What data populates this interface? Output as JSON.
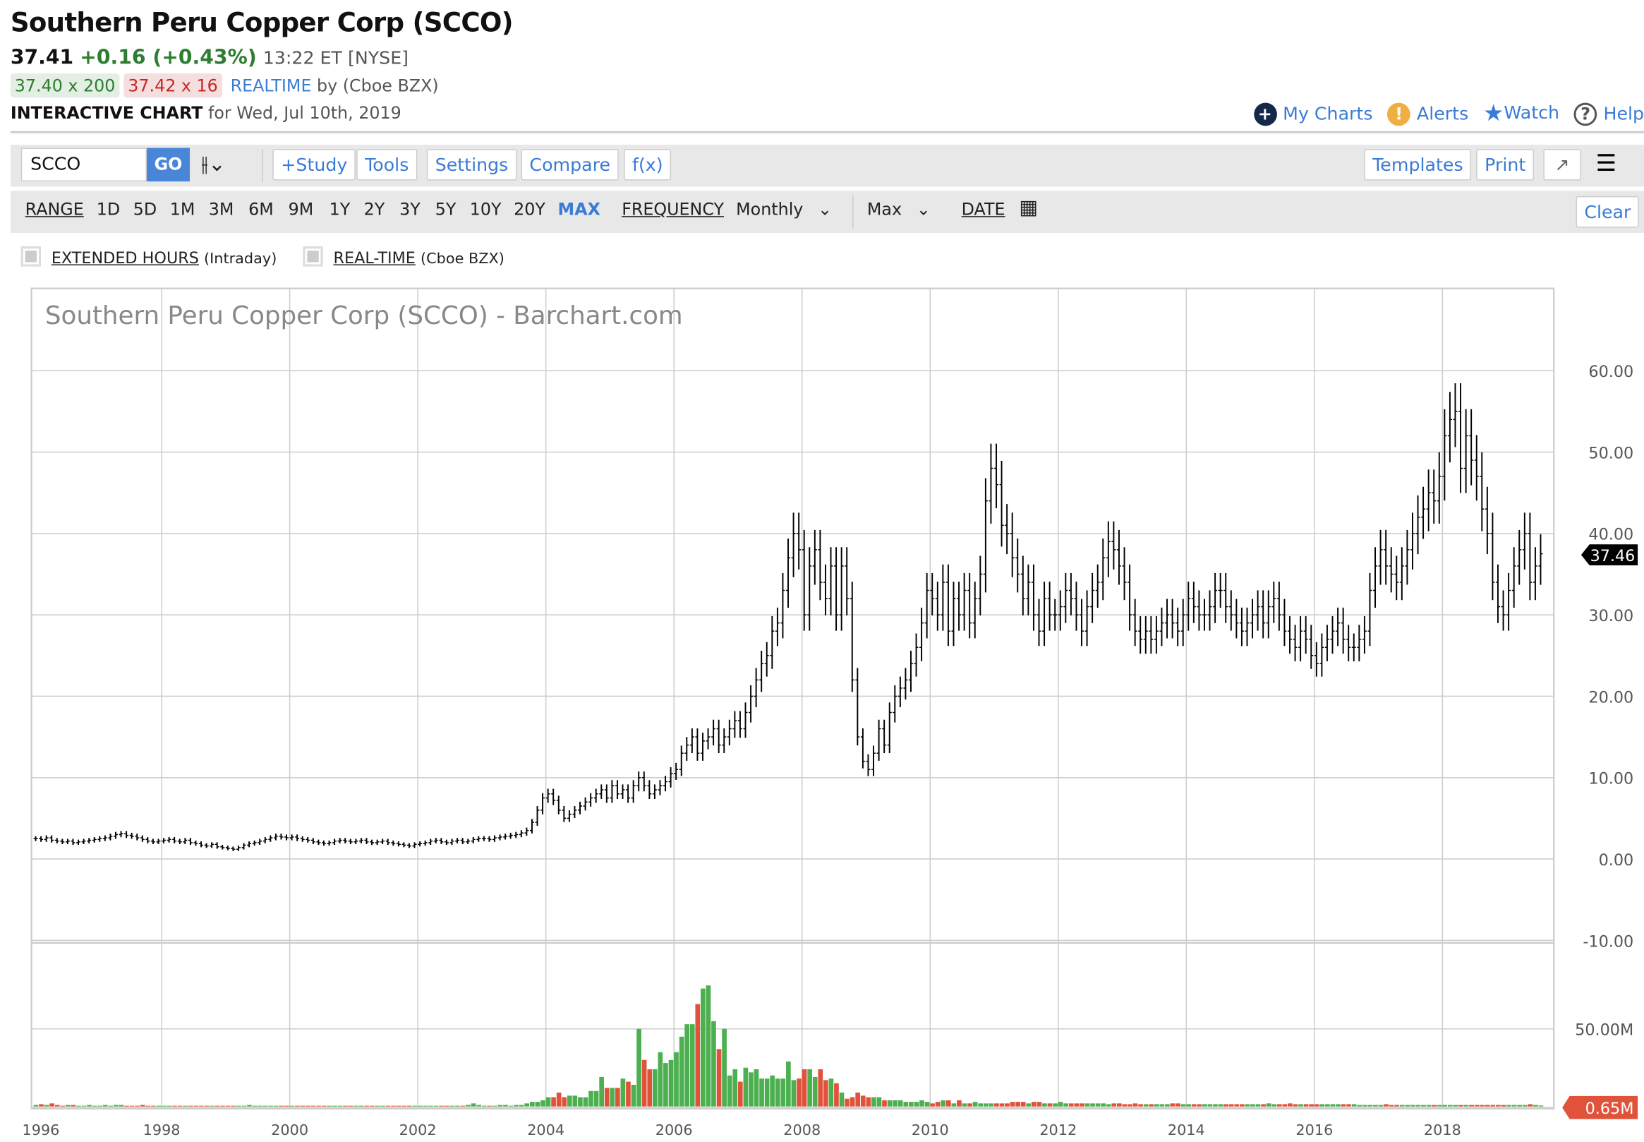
{
  "header": {
    "title": "Southern Peru Copper Corp (SCCO)",
    "last": "37.41",
    "change": "+0.16 (+0.43%)",
    "time": "13:22 ET [NYSE]",
    "bid": "37.40 x 200",
    "ask": "37.42 x 16",
    "realtime": "REALTIME",
    "by": "by (Cboe BZX)",
    "ic_label": "INTERACTIVE CHART",
    "ic_date": "for Wed, Jul 10th, 2019"
  },
  "links": {
    "my_charts": "My Charts",
    "alerts": "Alerts",
    "watch": "Watch",
    "help": "Help"
  },
  "toolbar": {
    "symbol": "SCCO",
    "go": "GO",
    "study": "+Study",
    "tools": "Tools",
    "settings": "Settings",
    "compare": "Compare",
    "fx": "f(x)",
    "templates": "Templates",
    "print": "Print"
  },
  "range": {
    "label": "RANGE",
    "items": [
      "1D",
      "5D",
      "1M",
      "3M",
      "6M",
      "9M",
      "1Y",
      "2Y",
      "3Y",
      "5Y",
      "10Y",
      "20Y",
      "MAX"
    ],
    "active": "MAX",
    "frequency_label": "FREQUENCY",
    "frequency": "Monthly",
    "period": "Max",
    "date_label": "DATE",
    "clear": "Clear"
  },
  "options": {
    "ext": "EXTENDED HOURS",
    "ext_note": "(Intraday)",
    "rt": "REAL-TIME",
    "rt_note": "(Cboe BZX)"
  },
  "colors": {
    "up": "#4caf50",
    "down": "#e0533a",
    "accent": "#3a7bd5",
    "price_badge": "#000000",
    "volume_badge": "#e0533a"
  },
  "chart_data": {
    "type": "ohlc-bar",
    "title": "Southern Peru Copper Corp (SCCO) - Barchart.com",
    "frequency": "monthly",
    "start": "1996-01",
    "x_ticks": [
      "1996",
      "1998",
      "2000",
      "2002",
      "2004",
      "2006",
      "2008",
      "2010",
      "2012",
      "2014",
      "2016",
      "2018"
    ],
    "y_ticks": [
      "60.00",
      "50.00",
      "40.00",
      "30.00",
      "20.00",
      "10.00",
      "0.00",
      "-10.00"
    ],
    "ylim": [
      -10,
      70
    ],
    "volume_ticks": [
      "50.00M"
    ],
    "last_price": "37.46",
    "last_volume": "0.65M",
    "close": [
      2.5,
      2.4,
      2.6,
      2.3,
      2.2,
      2.1,
      2.2,
      2.0,
      2.1,
      2.2,
      2.3,
      2.4,
      2.5,
      2.6,
      2.8,
      3.0,
      3.1,
      2.9,
      2.8,
      2.6,
      2.4,
      2.2,
      2.1,
      2.2,
      2.3,
      2.4,
      2.2,
      2.1,
      2.3,
      2.0,
      1.9,
      1.7,
      1.6,
      1.8,
      1.5,
      1.4,
      1.3,
      1.2,
      1.4,
      1.7,
      1.9,
      2.0,
      2.2,
      2.4,
      2.6,
      2.8,
      2.7,
      2.6,
      2.7,
      2.5,
      2.4,
      2.3,
      2.1,
      2.0,
      1.9,
      2.0,
      2.2,
      2.3,
      2.2,
      2.1,
      2.2,
      2.3,
      2.1,
      2.0,
      2.1,
      2.2,
      2.0,
      1.9,
      1.8,
      1.7,
      1.6,
      1.8,
      1.9,
      2.0,
      2.2,
      2.3,
      2.1,
      2.0,
      2.2,
      2.3,
      2.1,
      2.2,
      2.4,
      2.5,
      2.5,
      2.4,
      2.6,
      2.7,
      2.8,
      2.9,
      3.0,
      3.2,
      3.5,
      4.5,
      6.0,
      7.5,
      8.0,
      7.2,
      6.0,
      5.0,
      5.5,
      6.0,
      6.5,
      7.0,
      7.5,
      8.0,
      8.5,
      7.5,
      9.0,
      8.0,
      8.5,
      7.5,
      9.0,
      10.0,
      9.0,
      8.0,
      8.5,
      9.0,
      9.5,
      10.5,
      11.0,
      13.0,
      14.0,
      15.0,
      13.0,
      14.5,
      15.0,
      16.0,
      14.0,
      15.0,
      16.0,
      17.0,
      16.0,
      18.0,
      20.0,
      22.0,
      24.0,
      25.0,
      28.0,
      29.0,
      33.0,
      37.0,
      40.0,
      38.0,
      30.0,
      36.0,
      38.0,
      34.0,
      32.0,
      36.0,
      30.0,
      36.0,
      32.0,
      22.0,
      15.0,
      12.0,
      11.0,
      13.0,
      16.0,
      14.0,
      18.0,
      20.0,
      21.0,
      22.0,
      24.0,
      26.0,
      29.0,
      33.0,
      32.0,
      30.0,
      34.0,
      28.0,
      32.0,
      30.0,
      33.0,
      29.0,
      32.0,
      35.0,
      44.0,
      48.0,
      46.0,
      41.0,
      40.0,
      37.0,
      35.0,
      32.0,
      34.0,
      30.0,
      28.0,
      32.0,
      30.0,
      30.0,
      31.0,
      33.0,
      32.0,
      30.0,
      28.0,
      31.0,
      33.0,
      34.0,
      37.0,
      39.0,
      38.0,
      36.0,
      34.0,
      30.0,
      28.0,
      27.0,
      28.0,
      27.0,
      28.0,
      29.0,
      30.0,
      29.0,
      28.0,
      30.0,
      32.0,
      31.0,
      30.0,
      30.0,
      31.0,
      33.0,
      33.0,
      31.0,
      30.0,
      29.0,
      28.0,
      29.0,
      30.0,
      31.0,
      29.0,
      31.0,
      32.0,
      30.0,
      28.0,
      27.0,
      26.0,
      28.0,
      27.0,
      25.0,
      24.0,
      26.0,
      27.0,
      28.0,
      29.0,
      27.0,
      26.0,
      26.0,
      27.0,
      28.0,
      33.0,
      36.0,
      38.0,
      36.0,
      35.0,
      34.0,
      36.0,
      38.0,
      40.0,
      42.0,
      43.0,
      45.0,
      44.0,
      47.0,
      52.0,
      54.0,
      55.0,
      48.0,
      52.0,
      49.0,
      47.0,
      43.0,
      40.0,
      34.0,
      31.0,
      30.0,
      33.0,
      36.0,
      38.0,
      40.0,
      34.0,
      36.0,
      37.5
    ],
    "volume_millions": [
      1,
      1.5,
      1,
      2,
      1,
      0.5,
      1,
      1,
      0.5,
      0.5,
      1,
      0.5,
      0.5,
      1,
      0.5,
      1,
      1,
      0.5,
      0.5,
      0.5,
      1,
      0.5,
      0.5,
      0.5,
      0.5,
      0.5,
      0.5,
      0.5,
      0.5,
      0.5,
      0.5,
      0.5,
      0.5,
      0.5,
      0.5,
      0.5,
      0.5,
      0.5,
      0.5,
      0.5,
      1,
      0.5,
      0.5,
      0.5,
      0.5,
      0.5,
      0.5,
      0.5,
      0.5,
      0.5,
      0.5,
      0.5,
      0.5,
      0.5,
      0.5,
      0.5,
      0.5,
      0.5,
      0.5,
      0.5,
      0.5,
      0.5,
      0.5,
      0.5,
      0.5,
      0.5,
      0.5,
      0.5,
      0.5,
      0.5,
      0.5,
      0.5,
      0.5,
      0.5,
      0.5,
      0.5,
      0.5,
      0.5,
      0.5,
      0.5,
      0.5,
      1,
      2,
      1,
      0.5,
      0.5,
      0.5,
      1,
      1,
      0.5,
      1,
      1,
      2,
      3,
      3,
      4,
      6,
      6,
      9,
      6,
      7,
      7,
      6,
      6,
      10,
      10,
      19,
      12,
      12,
      12,
      18,
      16,
      14,
      50,
      30,
      24,
      24,
      35,
      28,
      30,
      35,
      45,
      53,
      53,
      66,
      76,
      78,
      55,
      37,
      50,
      20,
      24,
      16,
      25,
      22,
      24,
      18,
      18,
      20,
      18,
      18,
      29,
      17,
      18,
      24,
      24,
      19,
      24,
      17,
      18,
      15,
      9,
      5,
      6,
      9,
      7,
      6,
      6,
      6,
      4,
      4,
      4,
      4,
      3,
      3,
      3,
      4,
      3,
      2,
      3,
      4,
      4,
      2,
      4,
      2,
      2,
      3,
      2,
      2,
      2,
      2,
      2,
      2,
      3,
      3,
      3,
      2,
      3,
      3,
      2,
      2,
      2,
      3,
      2,
      2,
      2,
      2,
      2,
      2,
      2,
      2,
      1.5,
      2,
      2,
      1.5,
      1.5,
      2,
      1.5,
      1.5,
      1.5,
      1.5,
      1.5,
      1.5,
      2,
      2,
      1.5,
      1.5,
      1.5,
      1.5,
      1.5,
      1.5,
      1.5,
      1.5,
      1.5,
      1.5,
      1.5,
      1.5,
      1.5,
      1.5,
      1.5,
      1.5,
      2,
      1.5,
      1.5,
      1.5,
      2,
      1.5,
      1.5,
      1.5,
      1.5,
      1.5,
      1.5,
      1.5,
      1.5,
      1.5,
      1.5,
      1.5,
      1.5,
      1,
      1,
      1,
      1,
      1,
      1.5,
      1,
      1,
      1,
      1,
      1,
      1,
      1,
      1,
      1,
      1,
      1,
      1,
      1,
      1,
      1,
      1,
      1,
      1,
      1,
      1,
      1,
      1,
      1,
      1,
      1,
      1,
      1.5,
      1,
      0.65
    ]
  }
}
